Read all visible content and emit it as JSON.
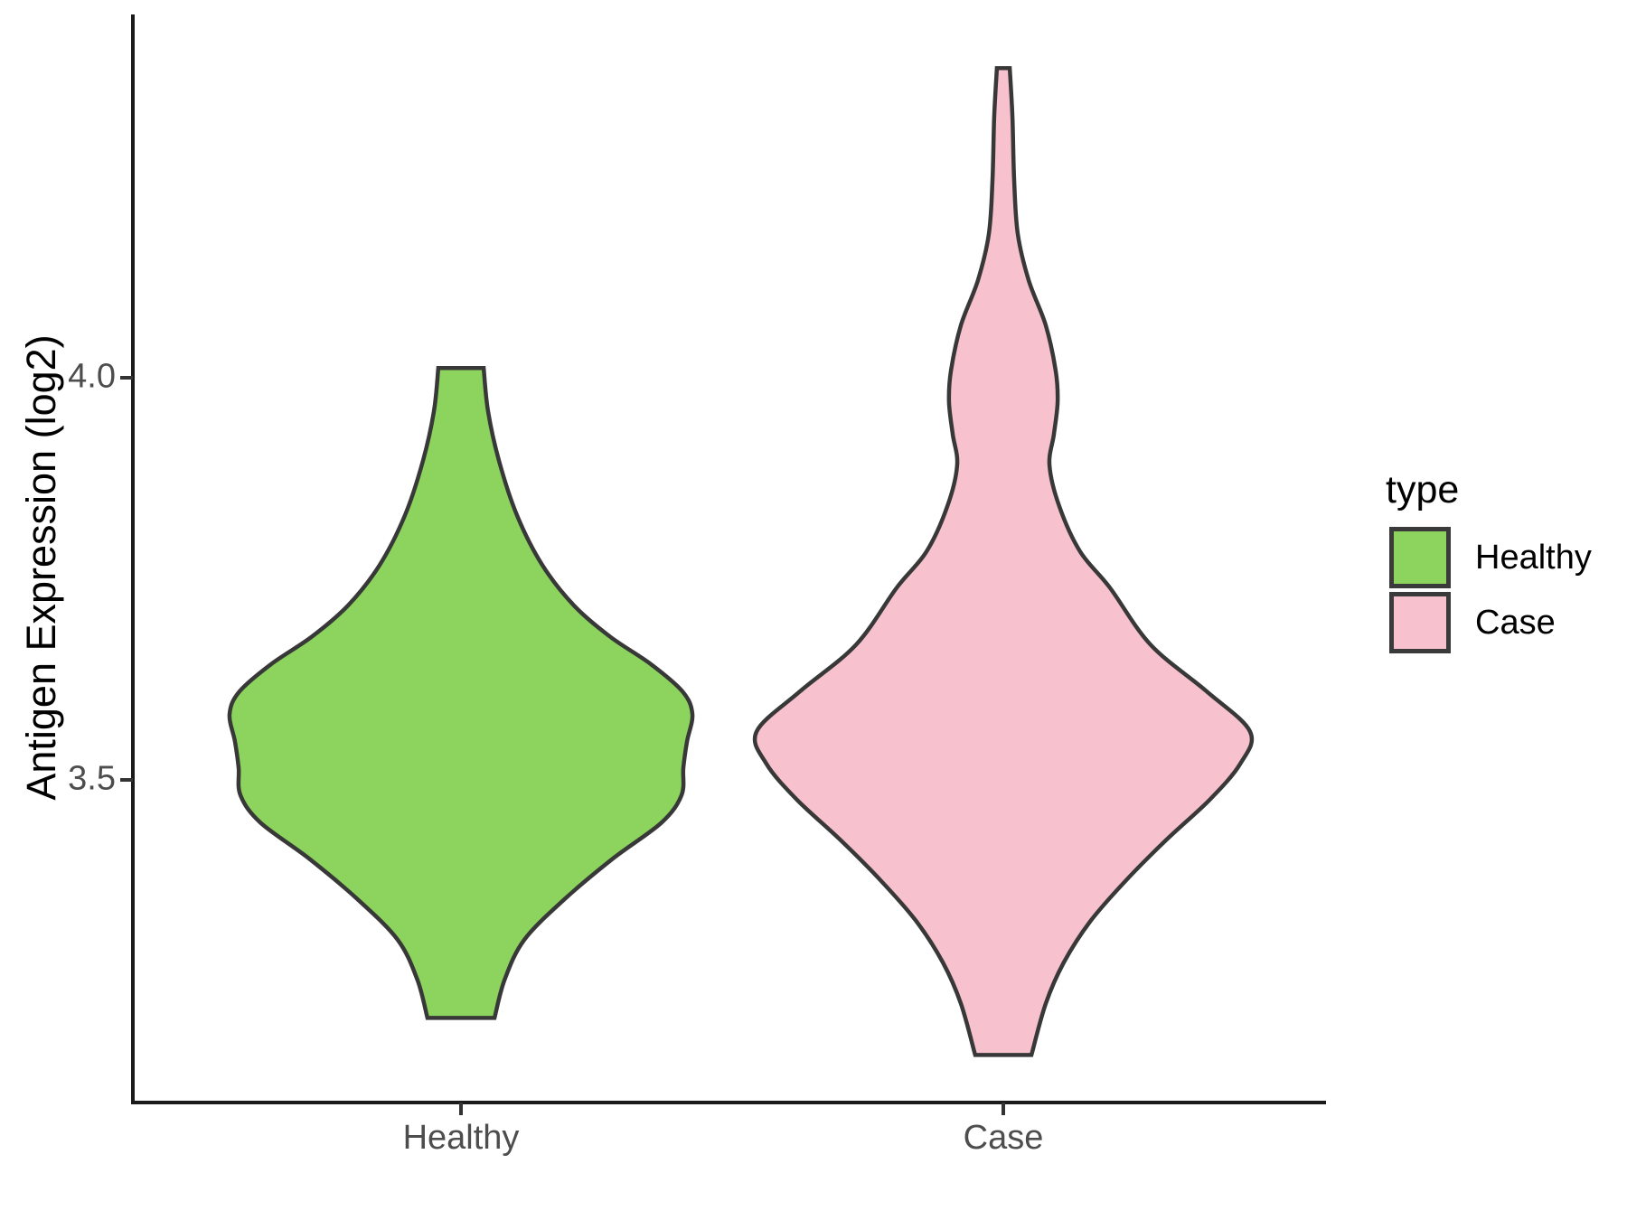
{
  "y_axis": {
    "title": "Antigen Expression (log2)",
    "ticks": [
      "4.0",
      "3.5"
    ]
  },
  "x_axis": {
    "ticks": [
      "Healthy",
      "Case"
    ]
  },
  "legend": {
    "title": "type",
    "items": [
      {
        "label": "Healthy",
        "color": "#8CD45E"
      },
      {
        "label": "Case",
        "color": "#F7C2CD"
      }
    ]
  },
  "colors": {
    "outline": "#383838",
    "axis": "#1a1a1a",
    "tick": "#333333",
    "tick_label": "#4d4d4d",
    "background": "#ffffff"
  },
  "chart_data": {
    "type": "violin",
    "title": "",
    "xlabel": "",
    "ylabel": "Antigen Expression (log2)",
    "categories": [
      "Healthy",
      "Case"
    ],
    "y_tick_values": [
      3.5,
      4.0
    ],
    "ylim_visible": [
      3.15,
      4.4
    ],
    "grid": false,
    "legend_position": "right",
    "series": [
      {
        "name": "Healthy",
        "fill": "#8CD45E",
        "value_range": [
          3.204,
          4.012
        ],
        "peak_value": 3.58,
        "profile": [
          [
            4.012,
            0.098
          ],
          [
            3.958,
            0.117
          ],
          [
            3.897,
            0.164
          ],
          [
            3.829,
            0.242
          ],
          [
            3.767,
            0.352
          ],
          [
            3.717,
            0.488
          ],
          [
            3.678,
            0.645
          ],
          [
            3.644,
            0.82
          ],
          [
            3.61,
            0.957
          ],
          [
            3.582,
            1.0
          ],
          [
            3.548,
            0.977
          ],
          [
            3.515,
            0.961
          ],
          [
            3.481,
            0.953
          ],
          [
            3.447,
            0.867
          ],
          [
            3.402,
            0.656
          ],
          [
            3.352,
            0.449
          ],
          [
            3.301,
            0.273
          ],
          [
            3.251,
            0.188
          ],
          [
            3.204,
            0.145
          ]
        ]
      },
      {
        "name": "Case",
        "fill": "#F7C2CD",
        "value_range": [
          3.158,
          4.385
        ],
        "peak_value": 3.56,
        "profile": [
          [
            4.385,
            0.026
          ],
          [
            4.324,
            0.037
          ],
          [
            4.245,
            0.044
          ],
          [
            4.178,
            0.059
          ],
          [
            4.121,
            0.103
          ],
          [
            4.065,
            0.172
          ],
          [
            4.009,
            0.212
          ],
          [
            3.97,
            0.22
          ],
          [
            3.93,
            0.205
          ],
          [
            3.891,
            0.187
          ],
          [
            3.84,
            0.227
          ],
          [
            3.784,
            0.311
          ],
          [
            3.739,
            0.432
          ],
          [
            3.668,
            0.597
          ],
          [
            3.61,
            0.824
          ],
          [
            3.56,
            1.0
          ],
          [
            3.52,
            0.96
          ],
          [
            3.475,
            0.835
          ],
          [
            3.425,
            0.659
          ],
          [
            3.374,
            0.494
          ],
          [
            3.324,
            0.352
          ],
          [
            3.273,
            0.245
          ],
          [
            3.222,
            0.172
          ],
          [
            3.158,
            0.114
          ]
        ]
      }
    ]
  }
}
